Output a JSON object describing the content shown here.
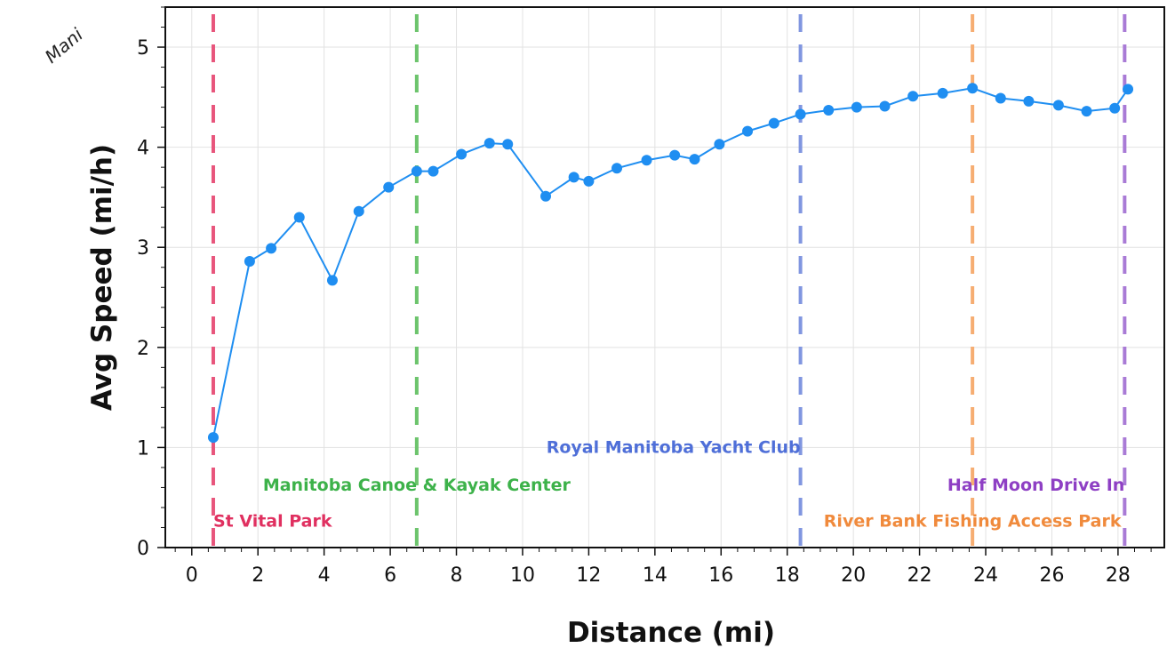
{
  "corner_text": "Mani",
  "chart_data": {
    "type": "line",
    "title": "",
    "xlabel": "Distance (mi)",
    "ylabel": "Avg Speed (mi/h)",
    "xlim": [
      -0.8,
      29.4
    ],
    "ylim": [
      0,
      5.4
    ],
    "xticks": [
      0,
      2,
      4,
      6,
      8,
      10,
      12,
      14,
      16,
      18,
      20,
      22,
      24,
      26,
      28
    ],
    "yticks": [
      0,
      1,
      2,
      3,
      4,
      5
    ],
    "grid": true,
    "series": [
      {
        "color": "#1f8ef1",
        "x": [
          0.65,
          1.75,
          2.4,
          3.25,
          4.25,
          5.05,
          5.95,
          6.8,
          7.3,
          8.15,
          9.0,
          9.55,
          10.7,
          11.55,
          12.0,
          12.85,
          13.75,
          14.6,
          15.2,
          15.95,
          16.8,
          17.6,
          18.4,
          19.25,
          20.1,
          20.95,
          21.8,
          22.7,
          23.6,
          24.45,
          25.3,
          26.2,
          27.05,
          27.9,
          28.3
        ],
        "y": [
          1.1,
          2.86,
          2.99,
          3.3,
          2.67,
          3.36,
          3.6,
          3.76,
          3.76,
          3.93,
          4.04,
          4.03,
          3.51,
          3.7,
          3.66,
          3.79,
          3.87,
          3.92,
          3.88,
          4.03,
          4.16,
          4.24,
          4.33,
          4.37,
          4.4,
          4.41,
          4.51,
          4.54,
          4.59,
          4.49,
          4.46,
          4.42,
          4.36,
          4.39,
          4.58
        ]
      }
    ],
    "annotations": [
      {
        "label": "St Vital Park",
        "x": 0.65,
        "label_y": 0.27,
        "color": "#e8557c",
        "text_color": "#e03060",
        "anchor": "start"
      },
      {
        "label": "Manitoba Canoe & Kayak Center",
        "x": 6.8,
        "label_y": 0.63,
        "color": "#6cc46c",
        "text_color": "#3db24a",
        "anchor": "middle"
      },
      {
        "label": "Royal Manitoba Yacht Club",
        "x": 18.4,
        "label_y": 1.01,
        "color": "#8096e0",
        "text_color": "#4f6fd8",
        "anchor": "end"
      },
      {
        "label": "River Bank Fishing Access Park",
        "x": 23.6,
        "label_y": 0.27,
        "color": "#f6ad72",
        "text_color": "#f08a3c",
        "anchor": "middle"
      },
      {
        "label": "Half Moon Drive In",
        "x": 28.2,
        "label_y": 0.63,
        "color": "#a97bd6",
        "text_color": "#8e3fc4",
        "anchor": "end"
      }
    ]
  }
}
